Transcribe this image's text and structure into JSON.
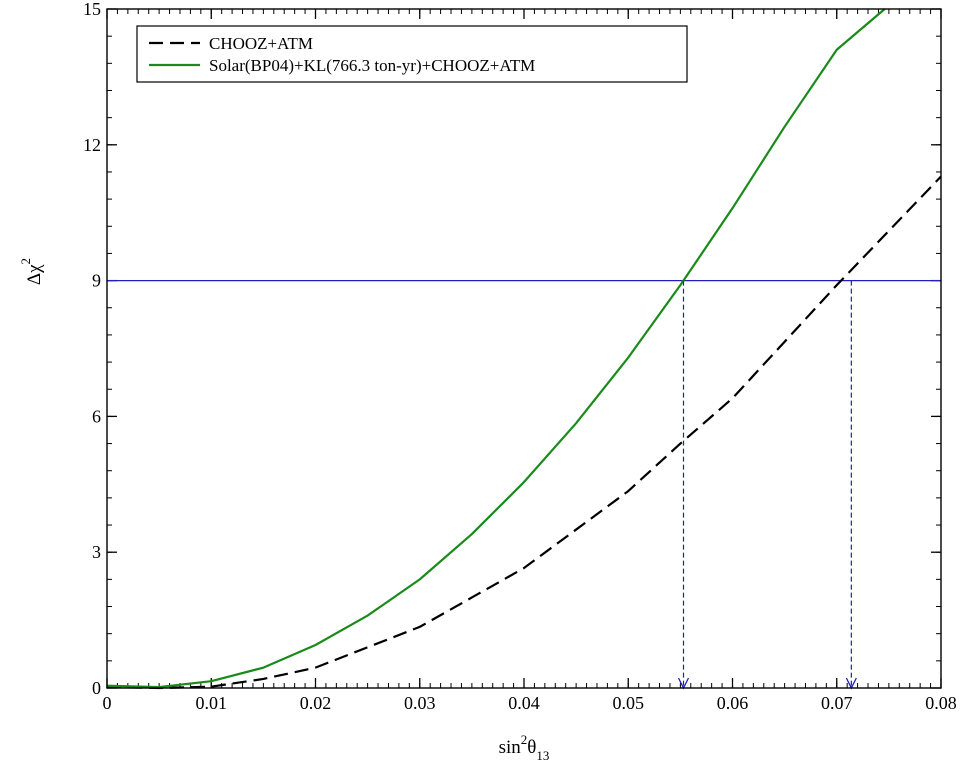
{
  "chart_data": {
    "type": "line",
    "title": "",
    "xlabel": {
      "base": "sin",
      "sup": "2",
      "greek": "θ",
      "sub": "13"
    },
    "ylabel": {
      "base": "Δχ",
      "sup": "2"
    },
    "xlim": [
      0,
      0.08
    ],
    "ylim": [
      0,
      15
    ],
    "x_ticks": [
      {
        "value": 0,
        "label": "0"
      },
      {
        "value": 0.01,
        "label": "0.01"
      },
      {
        "value": 0.02,
        "label": "0.02"
      },
      {
        "value": 0.03,
        "label": "0.03"
      },
      {
        "value": 0.04,
        "label": "0.04"
      },
      {
        "value": 0.05,
        "label": "0.05"
      },
      {
        "value": 0.06,
        "label": "0.06"
      },
      {
        "value": 0.07,
        "label": "0.07"
      },
      {
        "value": 0.08,
        "label": "0.08"
      }
    ],
    "y_ticks": [
      {
        "value": 0,
        "label": "0"
      },
      {
        "value": 3,
        "label": "3"
      },
      {
        "value": 6,
        "label": "6"
      },
      {
        "value": 9,
        "label": "9"
      },
      {
        "value": 12,
        "label": "12"
      },
      {
        "value": 15,
        "label": "15"
      }
    ],
    "x_minor_step": 0.001,
    "y_minor_step": 0.6,
    "grid": false,
    "legend_position": "top-left",
    "series": [
      {
        "name": "CHOOZ+ATM",
        "color": "#000000",
        "dash": "dashed",
        "x": [
          0,
          0.005,
          0.01,
          0.015,
          0.02,
          0.025,
          0.03,
          0.035,
          0.04,
          0.045,
          0.05,
          0.055,
          0.06,
          0.065,
          0.07,
          0.075,
          0.08
        ],
        "y": [
          0.02,
          0.0,
          0.03,
          0.2,
          0.45,
          0.9,
          1.35,
          2.0,
          2.65,
          3.5,
          4.35,
          5.4,
          6.4,
          7.65,
          8.9,
          10.1,
          11.3
        ]
      },
      {
        "name": "Solar(BP04)+KL(766.3 ton-yr)+CHOOZ+ATM",
        "color": "#1a8a1a",
        "dash": "solid",
        "x": [
          0,
          0.005,
          0.01,
          0.015,
          0.02,
          0.025,
          0.03,
          0.035,
          0.04,
          0.045,
          0.05,
          0.055,
          0.06,
          0.065,
          0.07,
          0.0746
        ],
        "y": [
          0.05,
          0.02,
          0.15,
          0.45,
          0.95,
          1.6,
          2.4,
          3.4,
          4.55,
          5.85,
          7.3,
          8.9,
          10.6,
          12.4,
          14.1,
          15.0
        ]
      }
    ],
    "reference_lines": [
      {
        "orientation": "horizontal",
        "y": 9,
        "color": "#1f1fbf",
        "style": "solid"
      }
    ],
    "annotations": [
      {
        "type": "arrow",
        "x": 0.0553,
        "y_from": 9,
        "y_to": 0,
        "color": "#1f1fbf",
        "style": "dashed"
      },
      {
        "type": "arrow",
        "x": 0.0714,
        "y_from": 9,
        "y_to": 0,
        "color": "#1f1fbf",
        "style": "dashed"
      }
    ]
  }
}
